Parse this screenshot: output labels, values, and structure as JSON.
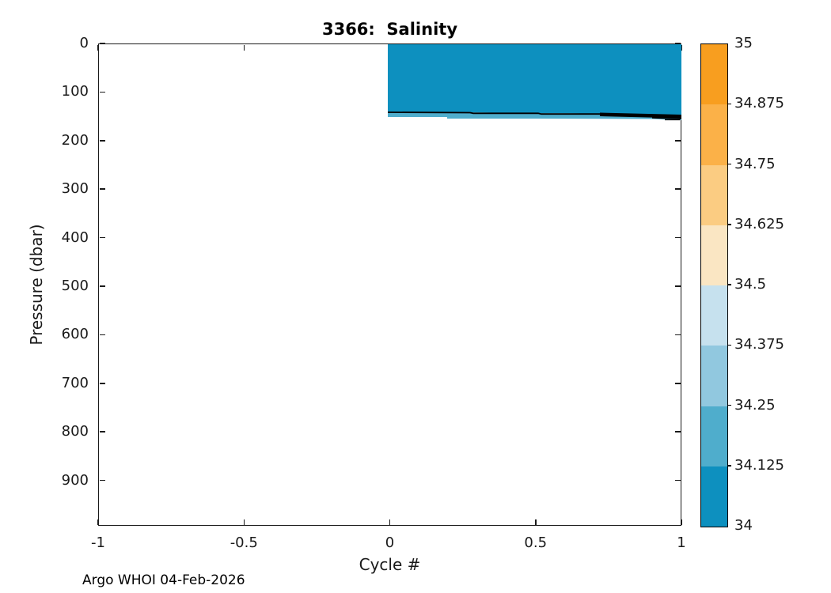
{
  "figure": {
    "title": "3366:  Salinity",
    "footer_text": "Argo WHOI 04-Feb-2026"
  },
  "axes": {
    "xlabel": "Cycle #",
    "ylabel": "Pressure (dbar)",
    "x_tick_labels": [
      "-1",
      "-0.5",
      "0",
      "0.5",
      "1"
    ],
    "y_tick_labels": [
      "0",
      "100",
      "200",
      "300",
      "400",
      "500",
      "600",
      "700",
      "800",
      "900"
    ]
  },
  "colorbar": {
    "tick_labels_top_to_bottom": [
      "35",
      "34.875",
      "34.75",
      "34.625",
      "34.5",
      "34.375",
      "34.25",
      "34.125",
      "34"
    ],
    "segment_colors_top_to_bottom": [
      "#F89E1F",
      "#FBB148",
      "#FBCC82",
      "#FAE6C3",
      "#C6E1EE",
      "#91C8DF",
      "#4FADCC",
      "#0D90BF"
    ]
  },
  "chart_data": {
    "type": "heatmap",
    "title": "3366:  Salinity",
    "xlabel": "Cycle #",
    "ylabel": "Pressure (dbar)",
    "xlim": [
      -1,
      1
    ],
    "ylim_dbar": [
      0,
      990
    ],
    "x_ticks": [
      -1,
      -0.5,
      0,
      0.5,
      1
    ],
    "y_ticks": [
      0,
      100,
      200,
      300,
      400,
      500,
      600,
      700,
      800,
      900
    ],
    "colorbar_range": [
      34,
      35
    ],
    "colorbar_levels": [
      34,
      34.125,
      34.25,
      34.375,
      34.5,
      34.625,
      34.75,
      34.875,
      35
    ],
    "grid": false,
    "legend": "colorbar-right",
    "filled_regions": [
      {
        "salinity_bin": [
          34.0,
          34.125
        ],
        "color": "#0D90BF",
        "cycle_range": [
          0,
          1
        ],
        "pressure_range_dbar": [
          2,
          140
        ]
      },
      {
        "salinity_bin": [
          34.125,
          34.25
        ],
        "color": "#4FADCC",
        "cycle_range": [
          0,
          1
        ],
        "pressure_range_dbar": [
          140,
          155
        ]
      }
    ],
    "contour_lines": [
      {
        "level": 34.125,
        "color": "#000000",
        "pressure_dbar_at_cycle0": 142,
        "pressure_dbar_at_cycle1": 148
      }
    ],
    "no_data_region": "pressure > ~155 dbar and cycle < 0 are blank (white)"
  }
}
